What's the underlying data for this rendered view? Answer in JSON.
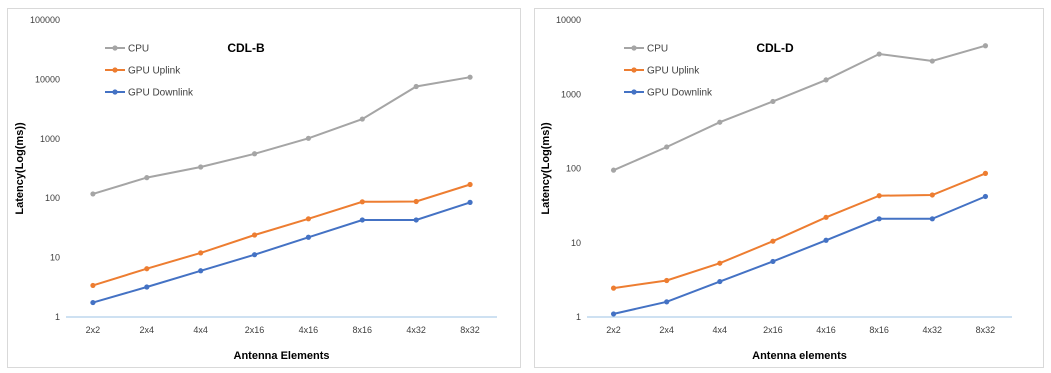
{
  "chart_data": [
    {
      "type": "line",
      "title": "CDL-B",
      "xlabel": "Antenna Elements",
      "ylabel": "Latency(Log(ms))",
      "yscale": "log",
      "ylim": [
        1,
        100000
      ],
      "yticks": [
        "1",
        "10",
        "100",
        "1000",
        "10000",
        "100000"
      ],
      "categories": [
        "2x2",
        "2x4",
        "4x4",
        "2x16",
        "4x16",
        "8x16",
        "4x32",
        "8x32"
      ],
      "legend_position": "top-left",
      "grid": false,
      "series": [
        {
          "name": "CPU",
          "color": "#a5a5a5",
          "values": [
            118,
            222,
            335,
            560,
            1020,
            2150,
            7600,
            10900
          ]
        },
        {
          "name": "GPU Uplink",
          "color": "#ed7d31",
          "values": [
            3.4,
            6.5,
            12,
            24,
            45,
            87,
            88,
            170
          ]
        },
        {
          "name": "GPU Downlink",
          "color": "#4472c4",
          "values": [
            1.75,
            3.2,
            6.0,
            11.2,
            22,
            43,
            43,
            85
          ]
        }
      ]
    },
    {
      "type": "line",
      "title": "CDL-D",
      "xlabel": "Antenna elements",
      "ylabel": "Latency(Log(ms))",
      "yscale": "log",
      "ylim": [
        1,
        10000
      ],
      "yticks": [
        "1",
        "10",
        "100",
        "1000",
        "10000"
      ],
      "categories": [
        "2x2",
        "2x4",
        "4x4",
        "2x16",
        "4x16",
        "8x16",
        "4x32",
        "8x32"
      ],
      "legend_position": "top-left",
      "grid": false,
      "series": [
        {
          "name": "CPU",
          "color": "#a5a5a5",
          "values": [
            95,
            195,
            420,
            800,
            1560,
            3480,
            2800,
            4500
          ]
        },
        {
          "name": "GPU Uplink",
          "color": "#ed7d31",
          "values": [
            2.45,
            3.1,
            5.3,
            10.5,
            22,
            43,
            44,
            86
          ]
        },
        {
          "name": "GPU Downlink",
          "color": "#4472c4",
          "values": [
            1.1,
            1.6,
            3.0,
            5.6,
            10.8,
            21,
            21,
            42
          ]
        }
      ]
    }
  ]
}
